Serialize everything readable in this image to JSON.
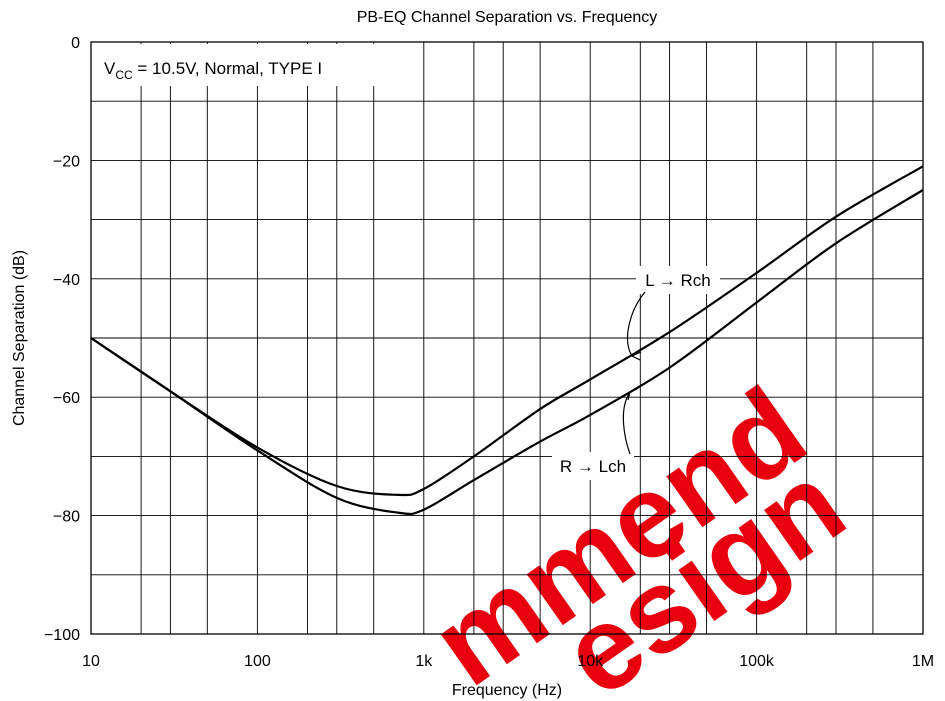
{
  "chart_data": {
    "type": "line",
    "title": "PB-EQ Channel Separation vs. Frequency",
    "xlabel": "Frequency (Hz)",
    "ylabel": "Channel Separation  (dB)",
    "x_scale": "log",
    "xlim": [
      10,
      1000000
    ],
    "ylim": [
      -100,
      0
    ],
    "x_tick_values": [
      10,
      100,
      1000,
      10000,
      100000,
      1000000
    ],
    "x_tick_labels": [
      "10",
      "100",
      "1k",
      "10k",
      "100k",
      "1M"
    ],
    "y_tick_values": [
      0,
      -20,
      -40,
      -60,
      -80,
      -100
    ],
    "y_tick_labels": [
      "0",
      "−20",
      "−40",
      "−60",
      "−80",
      "−100"
    ],
    "grid": true,
    "condition": {
      "v": "V",
      "sub": "CC",
      "rest": " = 10.5V, Normal, TYPE I"
    },
    "series": [
      {
        "name": "L → Rch",
        "color": "#000000",
        "x": [
          10,
          30,
          100,
          300,
          700,
          1000,
          2000,
          5000,
          10000,
          30000,
          100000,
          300000,
          1000000
        ],
        "y": [
          -50,
          -59,
          -68.5,
          -75,
          -76.5,
          -75.5,
          -70,
          -62,
          -57,
          -49,
          -39,
          -29.5,
          -21
        ]
      },
      {
        "name": "R → Lch",
        "color": "#000000",
        "x": [
          10,
          30,
          100,
          300,
          700,
          1000,
          2000,
          5000,
          10000,
          30000,
          100000,
          300000,
          1000000
        ],
        "y": [
          -50,
          -59,
          -69,
          -77,
          -79.5,
          -79,
          -74,
          -67.5,
          -63,
          -55,
          -44,
          -34,
          -25
        ]
      }
    ],
    "annotations": [
      {
        "text": "L → Rch",
        "series": "L → Rch"
      },
      {
        "text": "R → Lch",
        "series": "R → Lch"
      }
    ]
  },
  "watermark": {
    "lines": [
      "mmend",
      "esign"
    ],
    "color": "#e8000f"
  }
}
